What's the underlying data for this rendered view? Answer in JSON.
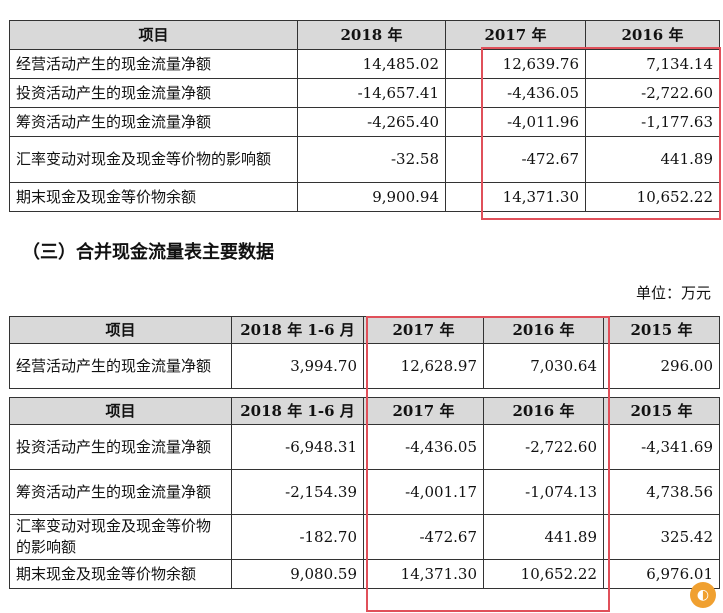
{
  "table1": {
    "headers": [
      "项目",
      "2018 年",
      "2017 年",
      "2016 年"
    ],
    "rows": [
      {
        "label": "经营活动产生的现金流量净额",
        "v2018": "14,485.02",
        "v2017": "12,639.76",
        "v2016": "7,134.14"
      },
      {
        "label": "投资活动产生的现金流量净额",
        "v2018": "-14,657.41",
        "v2017": "-4,436.05",
        "v2016": "-2,722.60"
      },
      {
        "label": "筹资活动产生的现金流量净额",
        "v2018": "-4,265.40",
        "v2017": "-4,011.96",
        "v2016": "-1,177.63"
      },
      {
        "label": "汇率变动对现金及现金等价物的影响额",
        "v2018": "-32.58",
        "v2017": "-472.67",
        "v2016": "441.89"
      },
      {
        "label": "期末现金及现金等价物余额",
        "v2018": "9,900.94",
        "v2017": "14,371.30",
        "v2016": "10,652.22"
      }
    ]
  },
  "section_title": "（三）合并现金流量表主要数据",
  "unit": "单位：万元",
  "table2": {
    "headers": [
      "项目",
      "2018 年 1-6 月",
      "2017 年",
      "2016 年",
      "2015 年"
    ],
    "first_row": {
      "label": "经营活动产生的现金流量净额",
      "h1": "3,994.70",
      "v2017": "12,628.97",
      "v2016": "7,030.64",
      "v2015": "296.00"
    },
    "rows": [
      {
        "label": "投资活动产生的现金流量净额",
        "h1": "-6,948.31",
        "v2017": "-4,436.05",
        "v2016": "-2,722.60",
        "v2015": "-4,341.69"
      },
      {
        "label": "筹资活动产生的现金流量净额",
        "h1": "-2,154.39",
        "v2017": "-4,001.17",
        "v2016": "-1,074.13",
        "v2015": "4,738.56"
      },
      {
        "label": "汇率变动对现金及现金等价物的影响额",
        "h1": "-182.70",
        "v2017": "-472.67",
        "v2016": "441.89",
        "v2015": "325.42"
      },
      {
        "label": "期末现金及现金等价物余额",
        "h1": "9,080.59",
        "v2017": "14,371.30",
        "v2016": "10,652.22",
        "v2015": "6,976.01"
      }
    ]
  },
  "highlight_color": "#e0505a"
}
